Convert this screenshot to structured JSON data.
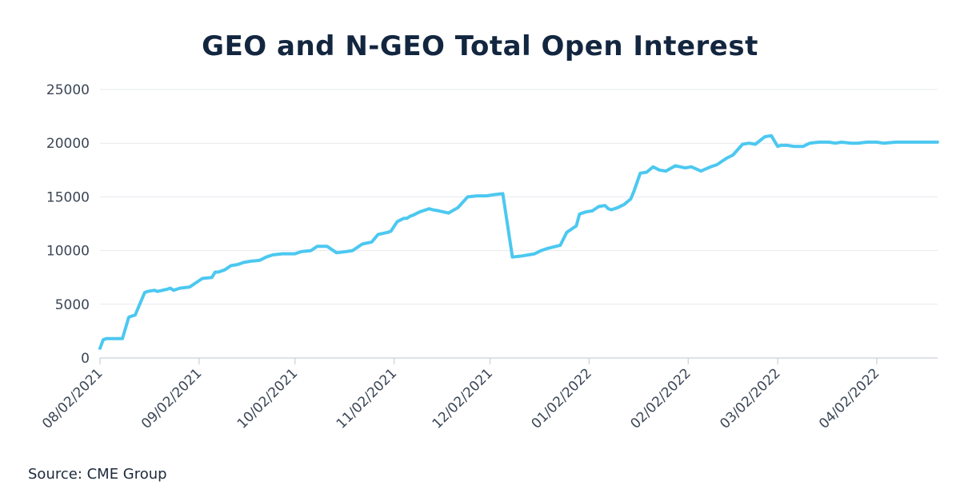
{
  "chart_data": {
    "type": "line",
    "title": "GEO and N-GEO Total Open Interest",
    "xlabel": "",
    "ylabel": "",
    "source": "Source: CME Group",
    "ylim": [
      0,
      25000
    ],
    "yticks": [
      0,
      5000,
      10000,
      15000,
      20000,
      25000
    ],
    "xticks": [
      "08/02/2021",
      "09/02/2021",
      "10/02/2021",
      "11/02/2021",
      "12/02/2021",
      "01/02/2022",
      "02/02/2022",
      "03/02/2022",
      "04/02/2022"
    ],
    "grid": "horizontal",
    "line_color": "#4cc8f0",
    "series": [
      {
        "x": [
          "2021-08-02",
          "2021-08-03",
          "2021-08-04",
          "2021-08-06",
          "2021-08-09",
          "2021-08-11",
          "2021-08-13",
          "2021-08-16",
          "2021-08-17",
          "2021-08-19",
          "2021-08-20",
          "2021-08-23",
          "2021-08-24",
          "2021-08-25",
          "2021-08-27",
          "2021-08-30",
          "2021-09-01",
          "2021-09-03",
          "2021-09-06",
          "2021-09-07",
          "2021-09-08",
          "2021-09-10",
          "2021-09-12",
          "2021-09-14",
          "2021-09-16",
          "2021-09-18",
          "2021-09-21",
          "2021-09-23",
          "2021-09-25",
          "2021-09-28",
          "2021-09-30",
          "2021-10-02",
          "2021-10-04",
          "2021-10-07",
          "2021-10-09",
          "2021-10-12",
          "2021-10-15",
          "2021-10-18",
          "2021-10-20",
          "2021-10-23",
          "2021-10-26",
          "2021-10-28",
          "2021-10-31",
          "2021-11-01",
          "2021-11-03",
          "2021-11-05",
          "2021-11-06",
          "2021-11-07",
          "2021-11-08",
          "2021-11-10",
          "2021-11-12",
          "2021-11-13",
          "2021-11-14",
          "2021-11-16",
          "2021-11-19",
          "2021-11-22",
          "2021-11-25",
          "2021-11-28",
          "2021-12-01",
          "2021-12-03",
          "2021-12-06",
          "2021-12-09",
          "2021-12-12",
          "2021-12-14",
          "2021-12-16",
          "2021-12-18",
          "2021-12-20",
          "2021-12-24",
          "2021-12-26",
          "2021-12-28",
          "2021-12-29",
          "2021-12-30",
          "2022-01-01",
          "2022-01-03",
          "2022-01-05",
          "2022-01-07",
          "2022-01-08",
          "2022-01-09",
          "2022-01-11",
          "2022-01-13",
          "2022-01-15",
          "2022-01-16",
          "2022-01-18",
          "2022-01-20",
          "2022-01-22",
          "2022-01-24",
          "2022-01-26",
          "2022-01-29",
          "2022-02-01",
          "2022-02-03",
          "2022-02-06",
          "2022-02-09",
          "2022-02-11",
          "2022-02-14",
          "2022-02-16",
          "2022-02-19",
          "2022-02-21",
          "2022-02-23",
          "2022-02-26",
          "2022-02-28",
          "2022-03-02",
          "2022-03-03",
          "2022-03-05",
          "2022-03-07",
          "2022-03-10",
          "2022-03-12",
          "2022-03-15",
          "2022-03-18",
          "2022-03-20",
          "2022-03-22",
          "2022-03-25",
          "2022-03-27",
          "2022-03-30",
          "2022-04-02",
          "2022-04-04",
          "2022-04-08",
          "2022-04-12",
          "2022-04-15",
          "2022-04-18",
          "2022-04-21"
        ],
        "values": [
          900,
          1700,
          1800,
          1800,
          1800,
          3800,
          4000,
          6100,
          6200,
          6300,
          6200,
          6400,
          6500,
          6300,
          6500,
          6600,
          7000,
          7400,
          7500,
          8000,
          8000,
          8200,
          8600,
          8700,
          8900,
          9000,
          9100,
          9400,
          9600,
          9700,
          9700,
          9700,
          9900,
          10000,
          10400,
          10400,
          9800,
          9900,
          10000,
          10600,
          10800,
          11500,
          11700,
          11800,
          12700,
          13000,
          13000,
          13200,
          13300,
          13600,
          13800,
          13900,
          13800,
          13700,
          13500,
          14000,
          15000,
          15100,
          15100,
          15200,
          15300,
          9400,
          9500,
          9600,
          9700,
          10000,
          10200,
          10500,
          11700,
          12100,
          12300,
          13400,
          13600,
          13700,
          14100,
          14200,
          13900,
          13800,
          14000,
          14300,
          14800,
          15500,
          17200,
          17300,
          17800,
          17500,
          17400,
          17900,
          17700,
          17800,
          17400,
          17800,
          18000,
          18600,
          18900,
          19900,
          20000,
          19900,
          20600,
          20700,
          19700,
          19800,
          19800,
          19700,
          19700,
          20000,
          20100,
          20100,
          20000,
          20100,
          20000,
          20000,
          20100,
          20100,
          20000,
          20100,
          20100,
          20100,
          20100,
          20100
        ]
      }
    ]
  }
}
